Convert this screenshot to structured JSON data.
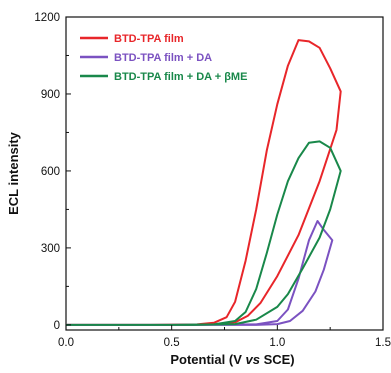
{
  "chart_data": {
    "type": "line",
    "title": "",
    "xlabel": "Potential (V vs SCE)",
    "xlabel_parts": [
      "Potential (V ",
      "vs",
      " SCE)"
    ],
    "ylabel": "ECL intensity",
    "xlim": [
      0.0,
      1.5
    ],
    "ylim": [
      -20,
      1200
    ],
    "xticks": [
      0.0,
      0.5,
      1.0,
      1.5
    ],
    "xtick_labels": [
      "0.0",
      "0.5",
      "1.0",
      "1.5"
    ],
    "yticks": [
      0,
      300,
      600,
      900,
      1200
    ],
    "ytick_labels": [
      "0",
      "300",
      "600",
      "900",
      "1200"
    ],
    "grid": false,
    "legend_position": "top-left",
    "series": [
      {
        "name": "BTD-TPA film",
        "color": "#e8262a",
        "points": [
          [
            0.0,
            0
          ],
          [
            0.4,
            0
          ],
          [
            0.62,
            2
          ],
          [
            0.7,
            8
          ],
          [
            0.76,
            30
          ],
          [
            0.8,
            90
          ],
          [
            0.85,
            250
          ],
          [
            0.9,
            450
          ],
          [
            0.95,
            680
          ],
          [
            1.0,
            860
          ],
          [
            1.05,
            1010
          ],
          [
            1.1,
            1110
          ],
          [
            1.15,
            1105
          ],
          [
            1.2,
            1080
          ],
          [
            1.25,
            1000
          ],
          [
            1.3,
            910
          ],
          [
            1.28,
            760
          ],
          [
            1.2,
            560
          ],
          [
            1.1,
            350
          ],
          [
            1.0,
            190
          ],
          [
            0.92,
            85
          ],
          [
            0.86,
            35
          ],
          [
            0.8,
            10
          ],
          [
            0.72,
            2
          ],
          [
            0.6,
            0
          ],
          [
            0.3,
            0
          ],
          [
            0.0,
            0
          ]
        ]
      },
      {
        "name": "BTD-TPA film + DA",
        "color": "#7b52c1",
        "points": [
          [
            0.0,
            0
          ],
          [
            0.5,
            0
          ],
          [
            0.9,
            2
          ],
          [
            1.0,
            15
          ],
          [
            1.05,
            60
          ],
          [
            1.1,
            180
          ],
          [
            1.15,
            330
          ],
          [
            1.19,
            405
          ],
          [
            1.22,
            370
          ],
          [
            1.26,
            330
          ],
          [
            1.22,
            215
          ],
          [
            1.18,
            130
          ],
          [
            1.12,
            55
          ],
          [
            1.06,
            15
          ],
          [
            1.0,
            3
          ],
          [
            0.9,
            0
          ],
          [
            0.5,
            0
          ],
          [
            0.0,
            0
          ]
        ]
      },
      {
        "name": "BTD-TPA film + DA + βME",
        "color": "#19884a",
        "points": [
          [
            0.0,
            0
          ],
          [
            0.5,
            0
          ],
          [
            0.7,
            2
          ],
          [
            0.8,
            15
          ],
          [
            0.85,
            50
          ],
          [
            0.9,
            140
          ],
          [
            0.95,
            280
          ],
          [
            1.0,
            430
          ],
          [
            1.05,
            560
          ],
          [
            1.1,
            650
          ],
          [
            1.15,
            710
          ],
          [
            1.2,
            715
          ],
          [
            1.25,
            690
          ],
          [
            1.3,
            600
          ],
          [
            1.25,
            450
          ],
          [
            1.2,
            340
          ],
          [
            1.12,
            220
          ],
          [
            1.05,
            120
          ],
          [
            1.0,
            70
          ],
          [
            0.9,
            20
          ],
          [
            0.8,
            3
          ],
          [
            0.6,
            0
          ],
          [
            0.0,
            0
          ]
        ]
      }
    ]
  }
}
